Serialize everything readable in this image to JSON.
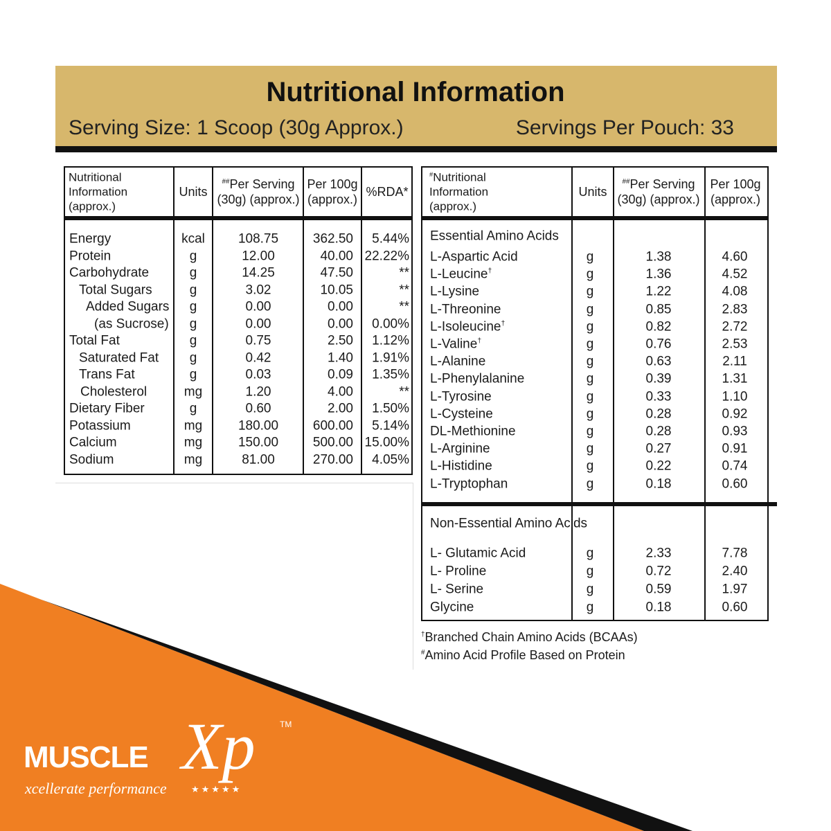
{
  "header": {
    "title": "Nutritional Information",
    "serving_size": "Serving Size: 1 Scoop (30g Approx.)",
    "servings_per_pouch": "Servings Per Pouch: 33"
  },
  "nutrition_table": {
    "columns": [
      {
        "lines": [
          "Nutritional",
          "Information",
          "(approx.)"
        ]
      },
      {
        "lines": [
          "Units"
        ]
      },
      {
        "mark": "##",
        "lines": [
          "Per Serving",
          "(30g) (approx.)"
        ]
      },
      {
        "lines": [
          "Per 100g",
          "(approx.)"
        ]
      },
      {
        "lines": [
          "%RDA*"
        ]
      }
    ],
    "rows": [
      [
        "Energy",
        "kcal",
        "108.75",
        "362.50",
        "5.44%"
      ],
      [
        "Protein",
        "g",
        "12.00",
        "40.00",
        "22.22%"
      ],
      [
        "Carbohydrate",
        "g",
        "14.25",
        "47.50",
        "**"
      ],
      [
        "Total Sugars",
        "g",
        "3.02",
        "10.05",
        "**"
      ],
      [
        "Added Sugars",
        "g",
        "0.00",
        "0.00",
        "**"
      ],
      [
        "(as Sucrose)",
        "g",
        "0.00",
        "0.00",
        "0.00%"
      ],
      [
        "Total Fat",
        "g",
        "0.75",
        "2.50",
        "1.12%"
      ],
      [
        "Saturated Fat",
        "g",
        "0.42",
        "1.40",
        "1.91%"
      ],
      [
        "Trans Fat",
        "g",
        "0.03",
        "0.09",
        "1.35%"
      ],
      [
        "Cholesterol",
        "mg",
        "1.20",
        "4.00",
        "**"
      ],
      [
        "Dietary Fiber",
        "g",
        "0.60",
        "2.00",
        "1.50%"
      ],
      [
        "Potassium",
        "mg",
        "180.00",
        "600.00",
        "5.14%"
      ],
      [
        "Calcium",
        "mg",
        "150.00",
        "500.00",
        "15.00%"
      ],
      [
        "Sodium",
        "mg",
        "81.00",
        "270.00",
        "4.05%"
      ]
    ]
  },
  "amino_table": {
    "columns": [
      {
        "mark": "#",
        "lines": [
          "Nutritional",
          "Information",
          "(approx.)"
        ]
      },
      {
        "lines": [
          "Units"
        ]
      },
      {
        "mark": "##",
        "lines": [
          "Per Serving",
          "(30g) (approx.)"
        ]
      },
      {
        "lines": [
          "Per 100g",
          "(approx.)"
        ]
      }
    ],
    "sections": [
      {
        "title": "Essential Amino Acids",
        "rows": [
          {
            "name": "L-Aspartic Acid",
            "unit": "g",
            "per_serving": "1.38",
            "per_100g": "4.60"
          },
          {
            "name": "L-Leucine",
            "mark": "†",
            "unit": "g",
            "per_serving": "1.36",
            "per_100g": "4.52"
          },
          {
            "name": "L-Lysine",
            "unit": "g",
            "per_serving": "1.22",
            "per_100g": "4.08"
          },
          {
            "name": "L-Threonine",
            "unit": "g",
            "per_serving": "0.85",
            "per_100g": "2.83"
          },
          {
            "name": "L-Isoleucine",
            "mark": "†",
            "unit": "g",
            "per_serving": "0.82",
            "per_100g": "2.72"
          },
          {
            "name": "L-Valine",
            "mark": "†",
            "unit": "g",
            "per_serving": "0.76",
            "per_100g": "2.53"
          },
          {
            "name": "L-Alanine",
            "unit": "g",
            "per_serving": "0.63",
            "per_100g": "2.11"
          },
          {
            "name": "L-Phenylalanine",
            "unit": "g",
            "per_serving": "0.39",
            "per_100g": "1.31"
          },
          {
            "name": "L-Tyrosine",
            "unit": "g",
            "per_serving": "0.33",
            "per_100g": "1.10"
          },
          {
            "name": "L-Cysteine",
            "unit": "g",
            "per_serving": "0.28",
            "per_100g": "0.92"
          },
          {
            "name": "DL-Methionine",
            "unit": "g",
            "per_serving": "0.28",
            "per_100g": "0.93"
          },
          {
            "name": "L-Arginine",
            "unit": "g",
            "per_serving": "0.27",
            "per_100g": "0.91"
          },
          {
            "name": "L-Histidine",
            "unit": "g",
            "per_serving": "0.22",
            "per_100g": "0.74"
          },
          {
            "name": "L-Tryptophan",
            "unit": "g",
            "per_serving": "0.18",
            "per_100g": "0.60"
          }
        ]
      },
      {
        "title": "Non-Essential Amino Acids",
        "rows": [
          {
            "name": "L- Glutamic Acid",
            "unit": "g",
            "per_serving": "2.33",
            "per_100g": "7.78"
          },
          {
            "name": "L- Proline",
            "unit": "g",
            "per_serving": "0.72",
            "per_100g": "2.40"
          },
          {
            "name": "L- Serine",
            "unit": "g",
            "per_serving": "0.59",
            "per_100g": "1.97"
          },
          {
            "name": "Glycine",
            "unit": "g",
            "per_serving": "0.18",
            "per_100g": "0.60"
          }
        ]
      }
    ]
  },
  "footnotes": [
    {
      "mark": "†",
      "text": "Branched Chain Amino Acids (BCAAs)"
    },
    {
      "mark": "#",
      "text": "Amino Acid Profile Based on Protein"
    }
  ],
  "brand": {
    "name": "MUSCLE",
    "logo_mark": "Xp",
    "trademark": "TM",
    "tagline": "xcellerate performance",
    "stars": "★★★★★"
  }
}
